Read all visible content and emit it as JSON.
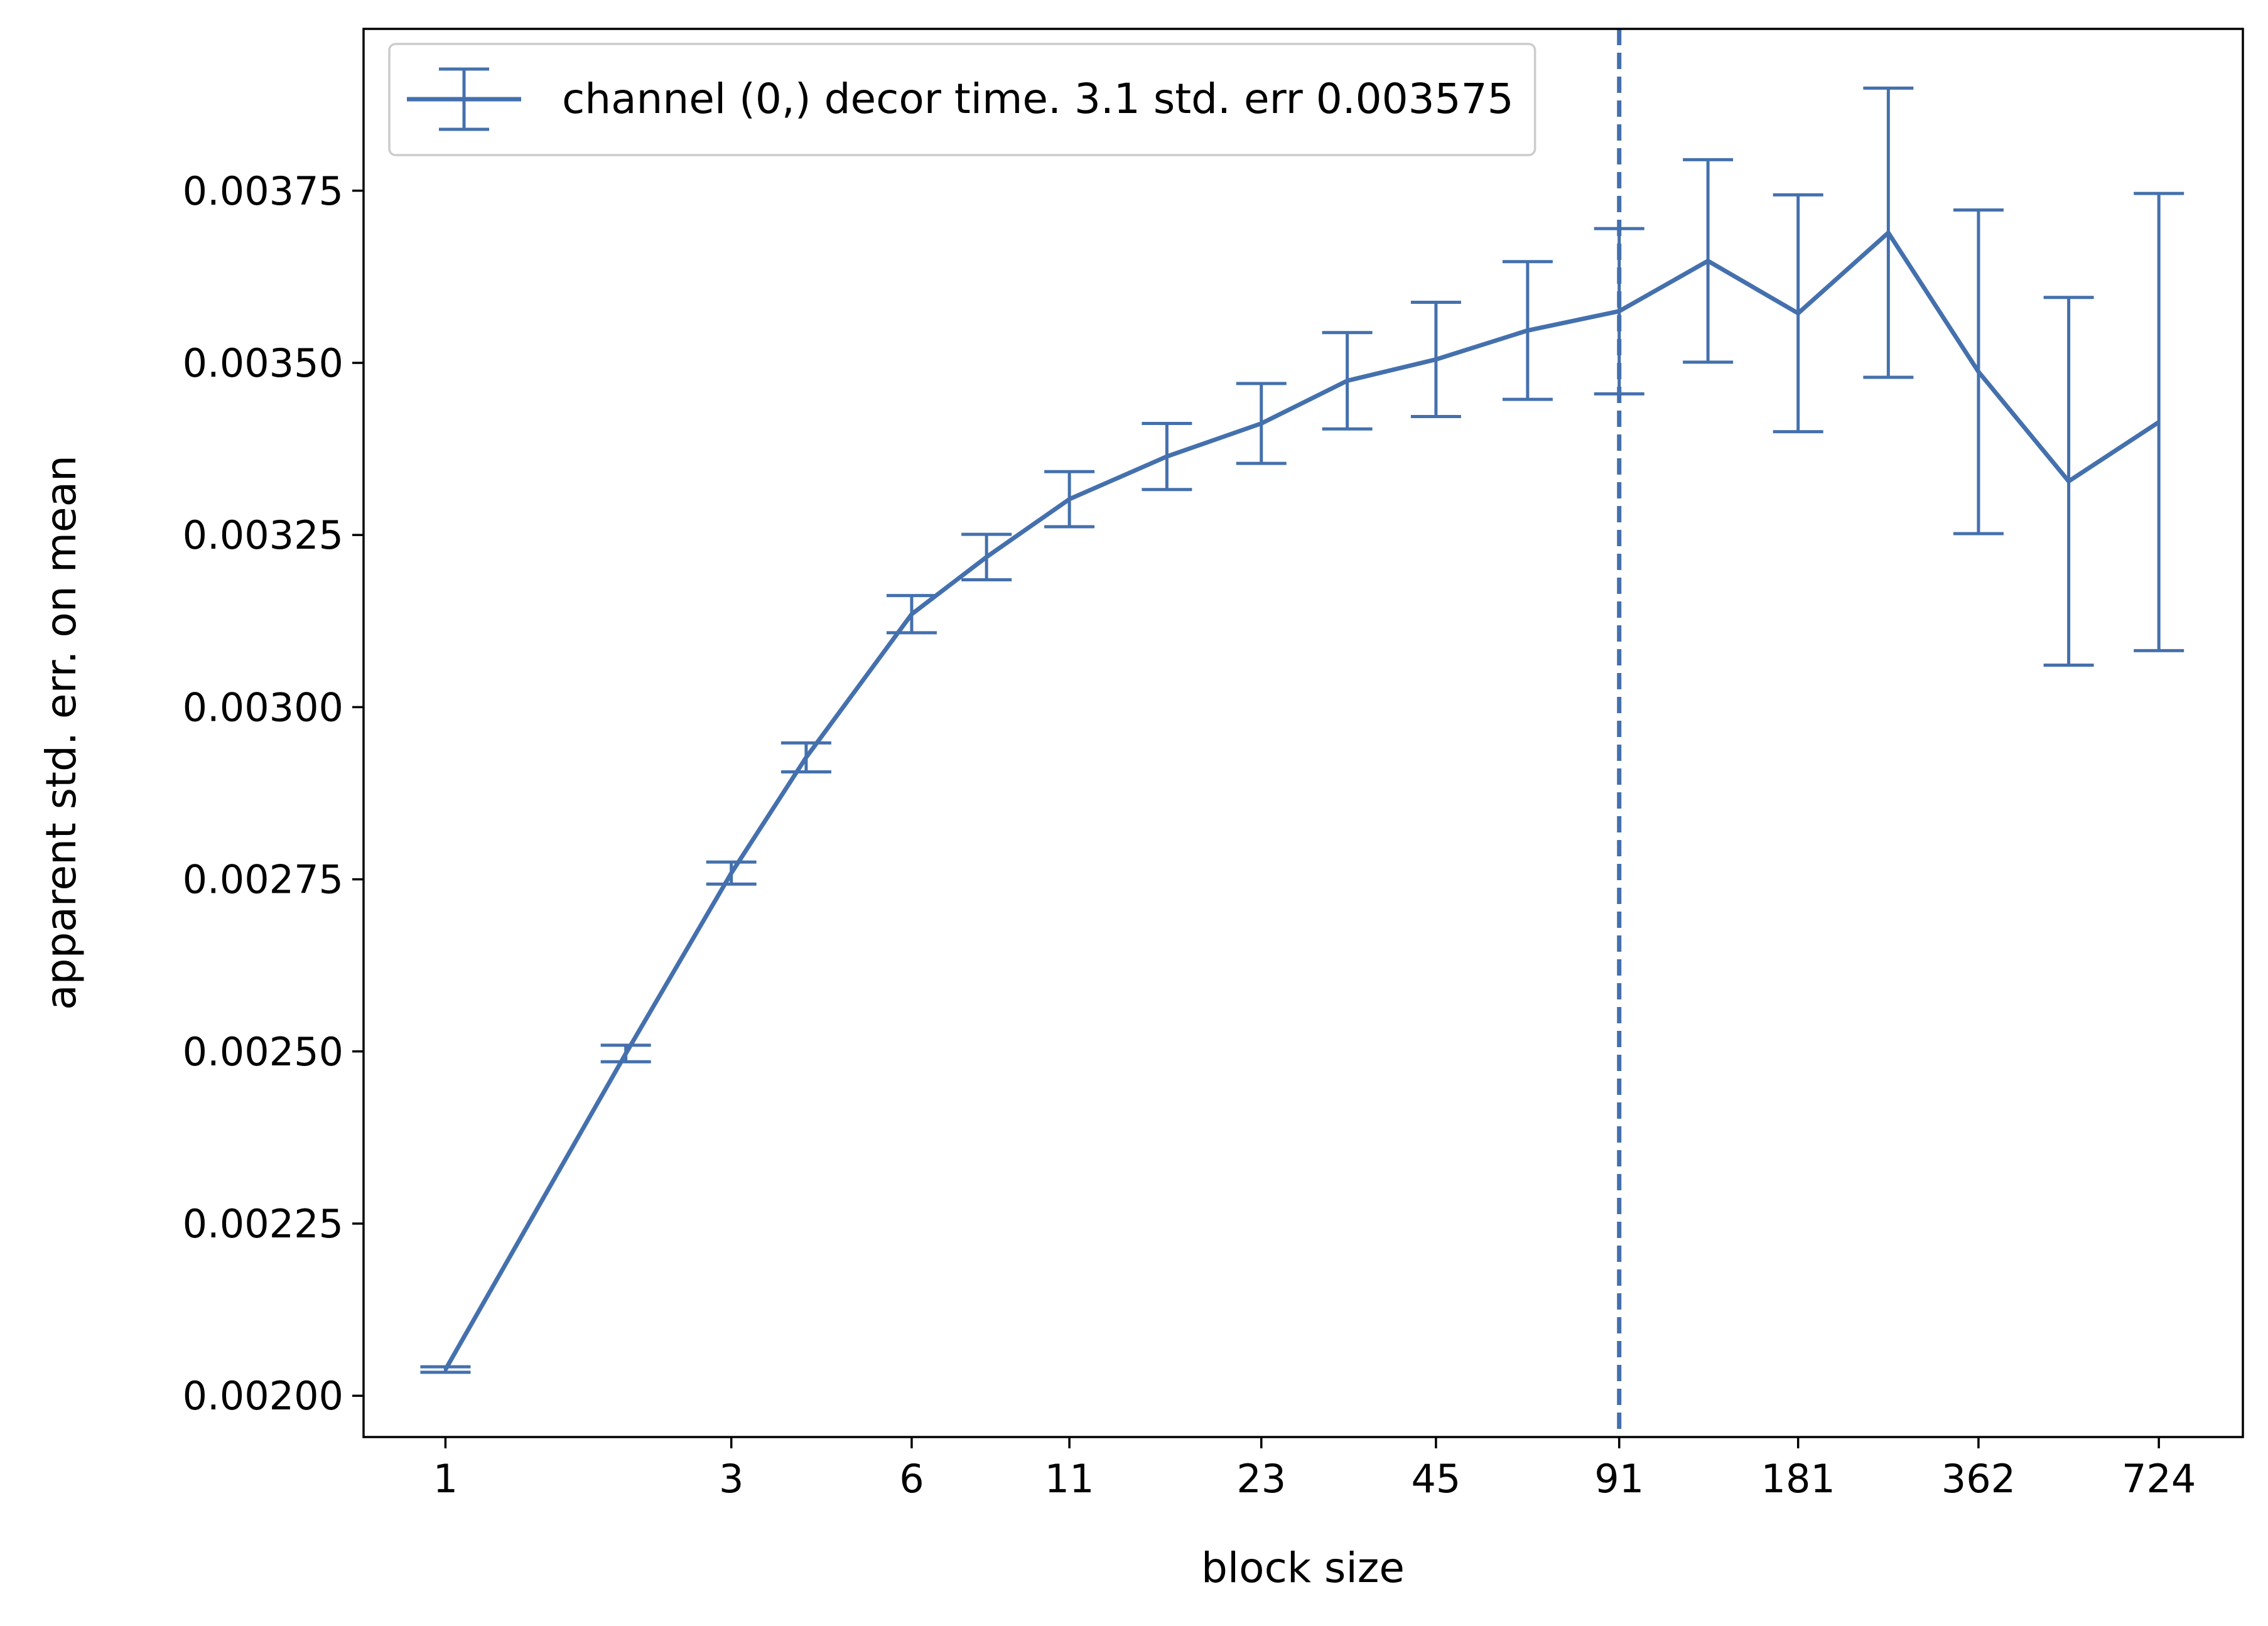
{
  "chart_data": {
    "type": "line",
    "title": "",
    "xlabel": "block size",
    "ylabel": "apparent std. err. on mean",
    "x_scale": "log",
    "xlim": [
      0.73,
      1000
    ],
    "ylim": [
      0.00194,
      0.003985
    ],
    "x_ticks": [
      1,
      3,
      6,
      11,
      23,
      45,
      91,
      181,
      362,
      724
    ],
    "x_tick_labels": [
      "1",
      "3",
      "6",
      "11",
      "23",
      "45",
      "91",
      "181",
      "362",
      "724"
    ],
    "y_ticks": [
      0.002,
      0.00225,
      0.0025,
      0.00275,
      0.003,
      0.00325,
      0.0035,
      0.00375
    ],
    "y_tick_labels": [
      "0.00200",
      "0.00225",
      "0.00250",
      "0.00275",
      "0.00300",
      "0.00325",
      "0.00350",
      "0.00375"
    ],
    "grid": false,
    "legend_position": "top-left",
    "vertical_line": {
      "x": 91,
      "style": "dashed"
    },
    "series": [
      {
        "name": "channel (0,) decor time. 3.1 std. err 0.003575",
        "color": "#4470ad",
        "x": [
          1,
          2,
          3,
          4,
          6,
          8,
          11,
          16,
          23,
          32,
          45,
          64,
          91,
          128,
          181,
          256,
          362,
          512,
          724
        ],
        "y": [
          0.002038,
          0.002497,
          0.002759,
          0.002927,
          0.003135,
          0.003218,
          0.003302,
          0.003364,
          0.003412,
          0.003474,
          0.003505,
          0.003547,
          0.003575,
          0.003648,
          0.003572,
          0.003689,
          0.003487,
          0.003328,
          0.003414
        ],
        "yerr": [
          4e-06,
          1.2e-05,
          1.6e-05,
          2.1e-05,
          2.7e-05,
          3.3e-05,
          4e-05,
          4.8e-05,
          5.8e-05,
          7e-05,
          8.3e-05,
          0.0001,
          0.00012,
          0.000147,
          0.000172,
          0.00021,
          0.000235,
          0.000267,
          0.000332
        ]
      }
    ]
  }
}
